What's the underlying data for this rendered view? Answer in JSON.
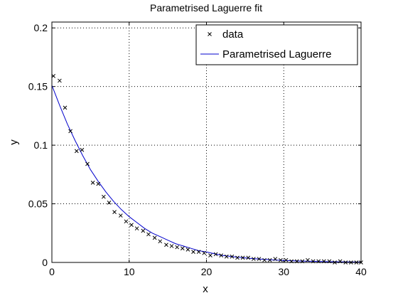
{
  "chart_data": {
    "type": "scatter",
    "title": "Parametrised Laguerre fit",
    "xlabel": "x",
    "ylabel": "y",
    "xlim": [
      0,
      40
    ],
    "ylim": [
      0,
      0.205
    ],
    "grid": true,
    "legend_position": "top-right",
    "x_ticks": [
      0,
      10,
      20,
      30,
      40
    ],
    "x_tick_labels": [
      "0",
      "10",
      "20",
      "30",
      "40"
    ],
    "y_ticks": [
      0,
      0.05,
      0.1,
      0.15,
      0.2
    ],
    "y_tick_labels": [
      "0",
      "0.05",
      "0.1",
      "0.15",
      "0.2"
    ],
    "series": [
      {
        "name": "data",
        "marker": "x",
        "color": "#000000",
        "x": [
          0.2,
          1.0,
          1.7,
          2.4,
          3.2,
          3.9,
          4.6,
          5.3,
          6.0,
          6.7,
          7.4,
          8.1,
          8.9,
          9.6,
          10.3,
          11.0,
          11.8,
          12.5,
          13.3,
          14.0,
          14.8,
          15.5,
          16.2,
          16.9,
          17.6,
          18.3,
          19.0,
          19.7,
          20.5,
          21.2,
          21.9,
          22.6,
          23.3,
          24.0,
          24.7,
          25.4,
          26.1,
          26.8,
          27.5,
          28.2,
          28.9,
          29.6,
          30.3,
          31.0,
          31.7,
          32.4,
          33.1,
          33.8,
          34.5,
          35.2,
          35.9,
          36.6,
          37.3,
          38.0,
          38.7,
          39.4,
          40.0
        ],
        "y": [
          0.159,
          0.155,
          0.132,
          0.112,
          0.095,
          0.096,
          0.084,
          0.068,
          0.067,
          0.056,
          0.051,
          0.043,
          0.04,
          0.035,
          0.032,
          0.029,
          0.027,
          0.024,
          0.021,
          0.018,
          0.015,
          0.014,
          0.013,
          0.012,
          0.011,
          0.009,
          0.009,
          0.008,
          0.006,
          0.007,
          0.006,
          0.005,
          0.005,
          0.004,
          0.004,
          0.004,
          0.003,
          0.003,
          0.002,
          0.002,
          0.003,
          0.002,
          0.002,
          0.001,
          0.001,
          0.001,
          0.002,
          0.001,
          0.001,
          0.001,
          0.001,
          0.0,
          0.001,
          0.0,
          0.0,
          0.0,
          0.0
        ]
      },
      {
        "name": "Parametrised Laguerre",
        "type": "line",
        "color": "#0000cc",
        "x": [
          0,
          1,
          2,
          3,
          4,
          5,
          6,
          7,
          8,
          9,
          10,
          11,
          12,
          13,
          14,
          15,
          16,
          17,
          18,
          19,
          20,
          22,
          24,
          26,
          28,
          30,
          32,
          34,
          36,
          38,
          40
        ],
        "y": [
          0.151,
          0.134,
          0.118,
          0.104,
          0.091,
          0.079,
          0.069,
          0.06,
          0.052,
          0.045,
          0.039,
          0.034,
          0.029,
          0.025,
          0.022,
          0.019,
          0.016,
          0.014,
          0.012,
          0.01,
          0.009,
          0.006,
          0.0045,
          0.0033,
          0.0024,
          0.0017,
          0.0012,
          0.0009,
          0.0006,
          0.0004,
          0.0003
        ]
      }
    ]
  }
}
